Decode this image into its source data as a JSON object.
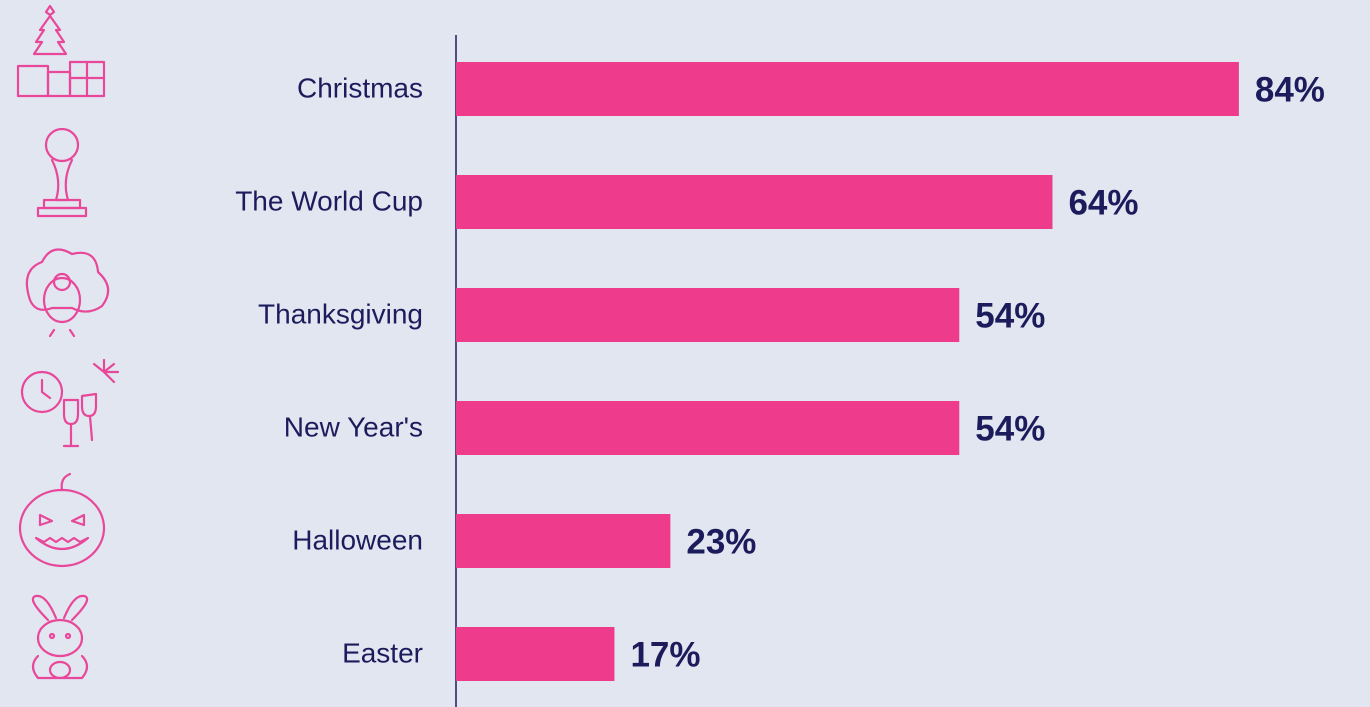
{
  "chart_data": {
    "type": "bar",
    "categories": [
      "Christmas",
      "The World Cup",
      "Thanksgiving",
      "New Year's",
      "Halloween",
      "Easter"
    ],
    "values": [
      84,
      64,
      54,
      54,
      23,
      17
    ],
    "value_labels": [
      "84%",
      "64%",
      "54%",
      "54%",
      "23%",
      "17%"
    ],
    "color": "#ee3b8c"
  }
}
